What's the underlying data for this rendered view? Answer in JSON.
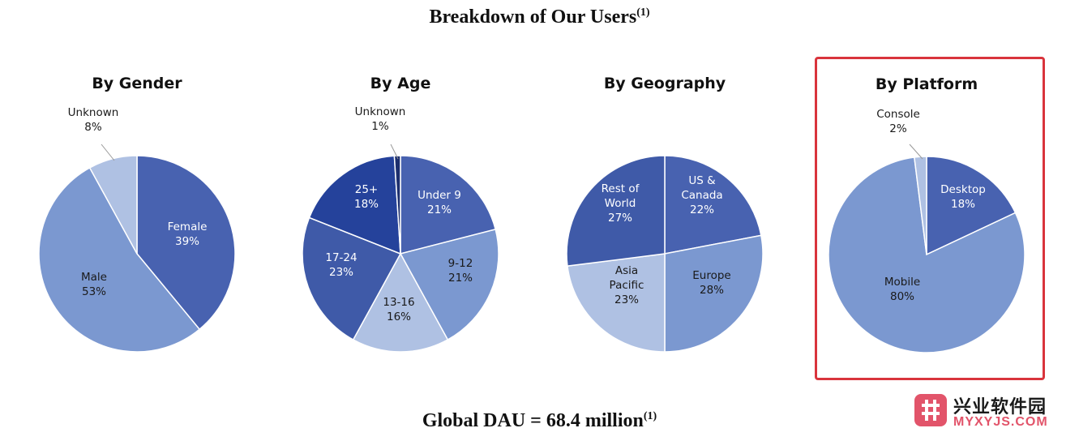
{
  "page": {
    "title": "Breakdown of Our Users",
    "title_note": "(1)",
    "footer": "Global DAU = 68.4 million",
    "footer_note": "(1)"
  },
  "colors": {
    "dark_navy": "#25429b",
    "medium_blue": "#4862b0",
    "steel_blue": "#3f5aa8",
    "light_blue": "#7b98d0",
    "pale_blue": "#afc1e3",
    "highlight_border": "#d9343c"
  },
  "chart_data": [
    {
      "type": "pie",
      "title": "By Gender",
      "slices": [
        {
          "label": "Female",
          "value": 39,
          "display": "39%",
          "color": "#4862b0"
        },
        {
          "label": "Male",
          "value": 53,
          "display": "53%",
          "color": "#7b98d0"
        },
        {
          "label": "Unknown",
          "value": 8,
          "display": "8%",
          "color": "#afc1e3"
        }
      ]
    },
    {
      "type": "pie",
      "title": "By Age",
      "slices": [
        {
          "label": "Under 9",
          "value": 21,
          "display": "21%",
          "color": "#4862b0"
        },
        {
          "label": "9-12",
          "value": 21,
          "display": "21%",
          "color": "#7b98d0"
        },
        {
          "label": "13-16",
          "value": 16,
          "display": "16%",
          "color": "#afc1e3"
        },
        {
          "label": "17-24",
          "value": 23,
          "display": "23%",
          "color": "#3f5aa8"
        },
        {
          "label": "25+",
          "value": 18,
          "display": "18%",
          "color": "#25429b"
        },
        {
          "label": "Unknown",
          "value": 1,
          "display": "1%",
          "color": "#1d2f6e"
        }
      ]
    },
    {
      "type": "pie",
      "title": "By Geography",
      "slices": [
        {
          "label": "US & Canada",
          "value": 22,
          "display": "22%",
          "color": "#4862b0"
        },
        {
          "label": "Europe",
          "value": 28,
          "display": "28%",
          "color": "#7b98d0"
        },
        {
          "label": "Asia Pacific",
          "value": 23,
          "display": "23%",
          "color": "#afc1e3"
        },
        {
          "label": "Rest of World",
          "value": 27,
          "display": "27%",
          "color": "#3f5aa8"
        }
      ]
    },
    {
      "type": "pie",
      "title": "By Platform",
      "highlighted": true,
      "slices": [
        {
          "label": "Desktop",
          "value": 18,
          "display": "18%",
          "color": "#4862b0"
        },
        {
          "label": "Mobile",
          "value": 80,
          "display": "80%",
          "color": "#7b98d0"
        },
        {
          "label": "Console",
          "value": 2,
          "display": "2%",
          "color": "#afc1e3"
        }
      ]
    }
  ],
  "watermark": {
    "cn_text": "兴业软件园",
    "en_text": "MYXYJS.COM"
  }
}
